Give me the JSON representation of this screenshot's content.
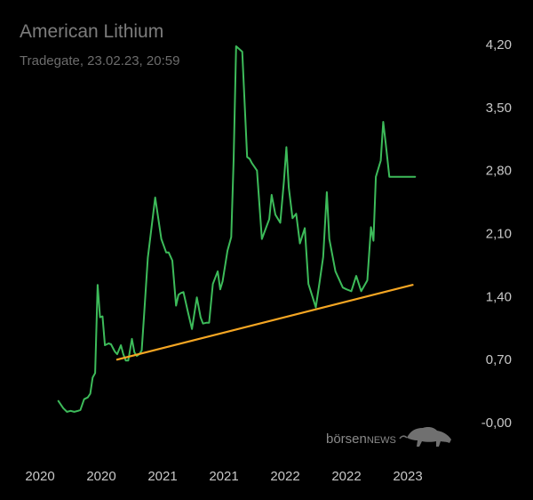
{
  "header": {
    "title": "American Lithium",
    "subtitle": "Tradegate, 23.02.23, 20:59"
  },
  "watermark": {
    "brand_prefix": "börsen",
    "brand_suffix": "NEWS",
    "icon": "bull-icon"
  },
  "colors": {
    "background": "#000000",
    "price_line": "#3dbb5a",
    "trend_line": "#f5a623",
    "axis_text": "#c8c8c8",
    "title_text": "#7c7c7c"
  },
  "chart_data": {
    "type": "line",
    "title": "American Lithium",
    "subtitle": "Tradegate, 23.02.23, 20:59",
    "xlabel": "",
    "ylabel": "",
    "ylim": [
      0,
      4.2
    ],
    "y_ticks": [
      {
        "value": 4.2,
        "label": "4,20"
      },
      {
        "value": 3.5,
        "label": "3,50"
      },
      {
        "value": 2.8,
        "label": "2,80"
      },
      {
        "value": 2.1,
        "label": "2,10"
      },
      {
        "value": 1.4,
        "label": "1,40"
      },
      {
        "value": 0.7,
        "label": "0,70"
      },
      {
        "value": 0.0,
        "label": "-0,00"
      }
    ],
    "x_ticks": [
      {
        "value": 0.0,
        "label": "2020"
      },
      {
        "value": 0.5,
        "label": "2020"
      },
      {
        "value": 1.0,
        "label": "2021"
      },
      {
        "value": 1.5,
        "label": "2021"
      },
      {
        "value": 2.0,
        "label": "2022"
      },
      {
        "value": 2.5,
        "label": "2022"
      },
      {
        "value": 3.0,
        "label": "2023"
      }
    ],
    "grid": false,
    "series": [
      {
        "color": "#3dbb5a",
        "x": [
          0.15,
          0.19,
          0.22,
          0.25,
          0.28,
          0.31,
          0.33,
          0.36,
          0.39,
          0.41,
          0.43,
          0.45,
          0.47,
          0.49,
          0.51,
          0.53,
          0.56,
          0.58,
          0.61,
          0.63,
          0.66,
          0.68,
          0.7,
          0.72,
          0.75,
          0.77,
          0.79,
          0.81,
          0.83,
          0.85,
          0.88,
          0.94,
          0.99,
          1.03,
          1.05,
          1.08,
          1.11,
          1.13,
          1.15,
          1.17,
          1.21,
          1.24,
          1.28,
          1.31,
          1.33,
          1.36,
          1.38,
          1.41,
          1.45,
          1.47,
          1.49,
          1.53,
          1.56,
          1.58,
          1.6,
          1.65,
          1.69,
          1.71,
          1.73,
          1.77,
          1.81,
          1.87,
          1.89,
          1.92,
          1.96,
          1.99,
          2.01,
          2.03,
          2.06,
          2.09,
          2.12,
          2.16,
          2.19,
          2.22,
          2.25,
          2.28,
          2.31,
          2.34,
          2.36,
          2.41,
          2.47,
          2.5,
          2.54,
          2.58,
          2.62,
          2.67,
          2.7,
          2.72,
          2.74,
          2.78,
          2.8,
          2.82,
          2.85,
          2.87,
          2.9,
          2.92,
          2.94,
          2.96,
          2.99,
          3.02,
          3.04,
          3.06
        ],
        "y": [
          0.24,
          0.16,
          0.12,
          0.13,
          0.12,
          0.13,
          0.14,
          0.26,
          0.28,
          0.32,
          0.5,
          0.55,
          1.53,
          1.17,
          1.18,
          0.86,
          0.88,
          0.87,
          0.79,
          0.76,
          0.86,
          0.76,
          0.69,
          0.69,
          0.93,
          0.78,
          0.74,
          0.76,
          0.8,
          1.21,
          1.83,
          2.5,
          2.04,
          1.89,
          1.89,
          1.8,
          1.3,
          1.42,
          1.44,
          1.45,
          1.21,
          1.04,
          1.39,
          1.17,
          1.1,
          1.11,
          1.11,
          1.54,
          1.68,
          1.48,
          1.57,
          1.91,
          2.06,
          2.92,
          4.18,
          4.12,
          2.95,
          2.93,
          2.88,
          2.8,
          2.04,
          2.26,
          2.53,
          2.31,
          2.22,
          2.68,
          3.06,
          2.61,
          2.27,
          2.32,
          1.99,
          2.16,
          1.54,
          1.41,
          1.28,
          1.55,
          1.84,
          2.56,
          2.04,
          1.68,
          1.5,
          1.48,
          1.46,
          1.63,
          1.46,
          1.58,
          2.17,
          2.02,
          2.73,
          2.91,
          3.34,
          3.1,
          2.73,
          2.73,
          2.73,
          2.73,
          2.73,
          2.73,
          2.73,
          2.73,
          2.73,
          2.73
        ]
      },
      {
        "color": "#f5a623",
        "x": [
          0.63,
          3.04
        ],
        "y": [
          0.7,
          1.53
        ]
      }
    ]
  }
}
